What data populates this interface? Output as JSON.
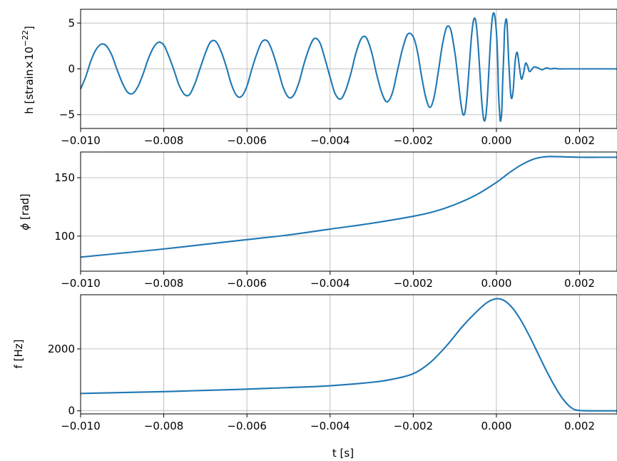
{
  "chart_data": [
    {
      "type": "line",
      "panel": "strain",
      "ylabel_prefix": "h [strain",
      "ylabel_times": "×10",
      "ylabel_exp": "−22",
      "ylabel_suffix": "]",
      "xlim": [
        -0.01,
        0.0029
      ],
      "ylim": [
        -6.5,
        6.5
      ],
      "yticks": [
        -5,
        0,
        5
      ],
      "ytick_labels": [
        "−5",
        "0",
        "5"
      ],
      "xticks": [
        -0.01,
        -0.008,
        -0.006,
        -0.004,
        -0.002,
        0.0,
        0.002
      ],
      "xtick_labels": [
        "−0.010",
        "−0.008",
        "−0.006",
        "−0.004",
        "−0.002",
        "0.000",
        "0.002"
      ],
      "grid": true,
      "series": [
        {
          "color": "#1f77b4",
          "x": [
            -0.01,
            -0.00988,
            -0.00975,
            -0.00963,
            -0.0095,
            -0.00938,
            -0.00925,
            -0.00913,
            -0.009,
            -0.00888,
            -0.00875,
            -0.00863,
            -0.0085,
            -0.00838,
            -0.00825,
            -0.00813,
            -0.008,
            -0.00788,
            -0.00775,
            -0.00763,
            -0.0075,
            -0.00738,
            -0.00725,
            -0.00713,
            -0.007,
            -0.00688,
            -0.00675,
            -0.00663,
            -0.0065,
            -0.00638,
            -0.00625,
            -0.00613,
            -0.006,
            -0.00588,
            -0.00575,
            -0.00563,
            -0.0055,
            -0.00538,
            -0.00525,
            -0.00513,
            -0.005,
            -0.00488,
            -0.00475,
            -0.00463,
            -0.0045,
            -0.00438,
            -0.00425,
            -0.00413,
            -0.004,
            -0.00388,
            -0.00375,
            -0.00363,
            -0.0035,
            -0.00338,
            -0.00325,
            -0.00313,
            -0.003,
            -0.00288,
            -0.00275,
            -0.00263,
            -0.0025,
            -0.00238,
            -0.00225,
            -0.00213,
            -0.002,
            -0.0019,
            -0.0018,
            -0.0017,
            -0.0016,
            -0.0015,
            -0.0014,
            -0.0013,
            -0.0012,
            -0.0011,
            -0.001,
            -0.00095,
            -0.0009,
            -0.00085,
            -0.0008,
            -0.00075,
            -0.0007,
            -0.00065,
            -0.0006,
            -0.00055,
            -0.0005,
            -0.00045,
            -0.0004,
            -0.00035,
            -0.0003,
            -0.00025,
            -0.0002,
            -0.00015,
            -0.0001,
            -5e-05,
            0.0,
            3e-05,
            5e-05,
            8e-05,
            0.0001,
            0.00013,
            0.00015,
            0.00018,
            0.0002,
            0.00025,
            0.0003,
            0.00035,
            0.0004,
            0.00045,
            0.0005,
            0.00055,
            0.0006,
            0.00065,
            0.0007,
            0.00075,
            0.0008,
            0.0009,
            0.001,
            0.0011,
            0.0012,
            0.0013,
            0.0014,
            0.0015,
            0.0016,
            0.0018,
            0.002,
            0.0025,
            0.0029
          ],
          "y": [
            -2.2,
            -0.9,
            0.9,
            2.1,
            2.7,
            2.5,
            1.5,
            0.0,
            -1.5,
            -2.5,
            -2.7,
            -2.0,
            -0.6,
            1.0,
            2.3,
            2.9,
            2.6,
            1.4,
            -0.2,
            -1.8,
            -2.8,
            -2.8,
            -1.6,
            0.0,
            1.7,
            2.9,
            3.0,
            2.0,
            0.3,
            -1.6,
            -2.9,
            -3.0,
            -1.9,
            0.0,
            1.8,
            3.0,
            3.0,
            1.8,
            -0.1,
            -2.0,
            -3.1,
            -2.9,
            -1.5,
            0.5,
            2.3,
            3.3,
            2.9,
            1.2,
            -0.9,
            -2.7,
            -3.3,
            -2.4,
            -0.5,
            1.7,
            3.3,
            3.4,
            1.8,
            -0.6,
            -2.7,
            -3.6,
            -2.6,
            -0.2,
            2.3,
            3.8,
            3.5,
            1.9,
            -0.8,
            -3.1,
            -4.2,
            -3.1,
            -0.4,
            2.6,
            4.5,
            4.3,
            1.8,
            0.0,
            -2.0,
            -3.9,
            -5.0,
            -4.6,
            -2.5,
            0.5,
            3.5,
            5.3,
            5.3,
            3.2,
            -0.2,
            -3.7,
            -5.6,
            -5.0,
            -1.8,
            2.5,
            5.5,
            6.0,
            4.0,
            1.0,
            -2.5,
            -5.0,
            -5.7,
            -4.5,
            -1.5,
            2.0,
            4.5,
            5.2,
            0.5,
            -3.0,
            -2.5,
            0.8,
            1.8,
            0.3,
            -1.1,
            -0.5,
            0.6,
            0.3,
            -0.3,
            0.2,
            0.1,
            -0.1,
            0.1,
            0.0,
            0.05,
            0.0,
            0.0,
            0.0,
            0.0,
            0.0,
            0.0
          ]
        }
      ]
    },
    {
      "type": "line",
      "panel": "phase",
      "ylabel_symbol": "ϕ",
      "ylabel_text": " [rad]",
      "xlim": [
        -0.01,
        0.0029
      ],
      "ylim": [
        70,
        172
      ],
      "yticks": [
        100,
        150
      ],
      "ytick_labels": [
        "100",
        "150"
      ],
      "xticks": [
        -0.01,
        -0.008,
        -0.006,
        -0.004,
        -0.002,
        0.0,
        0.002
      ],
      "xtick_labels": [
        "−0.010",
        "−0.008",
        "−0.006",
        "−0.004",
        "−0.002",
        "0.000",
        "0.002"
      ],
      "grid": true,
      "series": [
        {
          "color": "#1f77b4",
          "x": [
            -0.01,
            -0.009,
            -0.008,
            -0.007,
            -0.006,
            -0.005,
            -0.004,
            -0.003,
            -0.002,
            -0.0015,
            -0.001,
            -0.0005,
            0.0,
            0.0003,
            0.0006,
            0.0009,
            0.0012,
            0.0015,
            0.002,
            0.0025,
            0.0029
          ],
          "y": [
            82,
            85.5,
            89,
            93,
            97,
            101,
            106,
            111,
            117,
            121,
            127,
            135,
            146,
            154,
            161,
            166,
            168,
            168,
            167.5,
            167.5,
            167.5
          ]
        }
      ]
    },
    {
      "type": "line",
      "panel": "frequency",
      "ylabel": "f [Hz]",
      "xlabel": "t [s]",
      "xlim": [
        -0.01,
        0.0029
      ],
      "ylim": [
        -100,
        3750
      ],
      "yticks": [
        0,
        2000
      ],
      "ytick_labels": [
        "0",
        "2000"
      ],
      "xticks": [
        -0.01,
        -0.008,
        -0.006,
        -0.004,
        -0.002,
        0.0,
        0.002
      ],
      "xtick_labels": [
        "−0.010",
        "−0.008",
        "−0.006",
        "−0.004",
        "−0.002",
        "0.000",
        "0.002"
      ],
      "grid": true,
      "series": [
        {
          "color": "#1f77b4",
          "x": [
            -0.01,
            -0.009,
            -0.008,
            -0.007,
            -0.006,
            -0.005,
            -0.004,
            -0.003,
            -0.0025,
            -0.002,
            -0.0016,
            -0.0012,
            -0.0008,
            -0.0004,
            -0.0002,
            0.0,
            0.0002,
            0.0004,
            0.0006,
            0.0008,
            0.001,
            0.0012,
            0.0014,
            0.0016,
            0.0018,
            0.002,
            0.0025,
            0.0029
          ],
          "y": [
            560,
            590,
            620,
            660,
            700,
            750,
            810,
            920,
            1020,
            1200,
            1550,
            2100,
            2750,
            3300,
            3520,
            3620,
            3550,
            3300,
            2900,
            2400,
            1850,
            1300,
            800,
            380,
            100,
            10,
            0,
            0
          ]
        }
      ]
    }
  ]
}
